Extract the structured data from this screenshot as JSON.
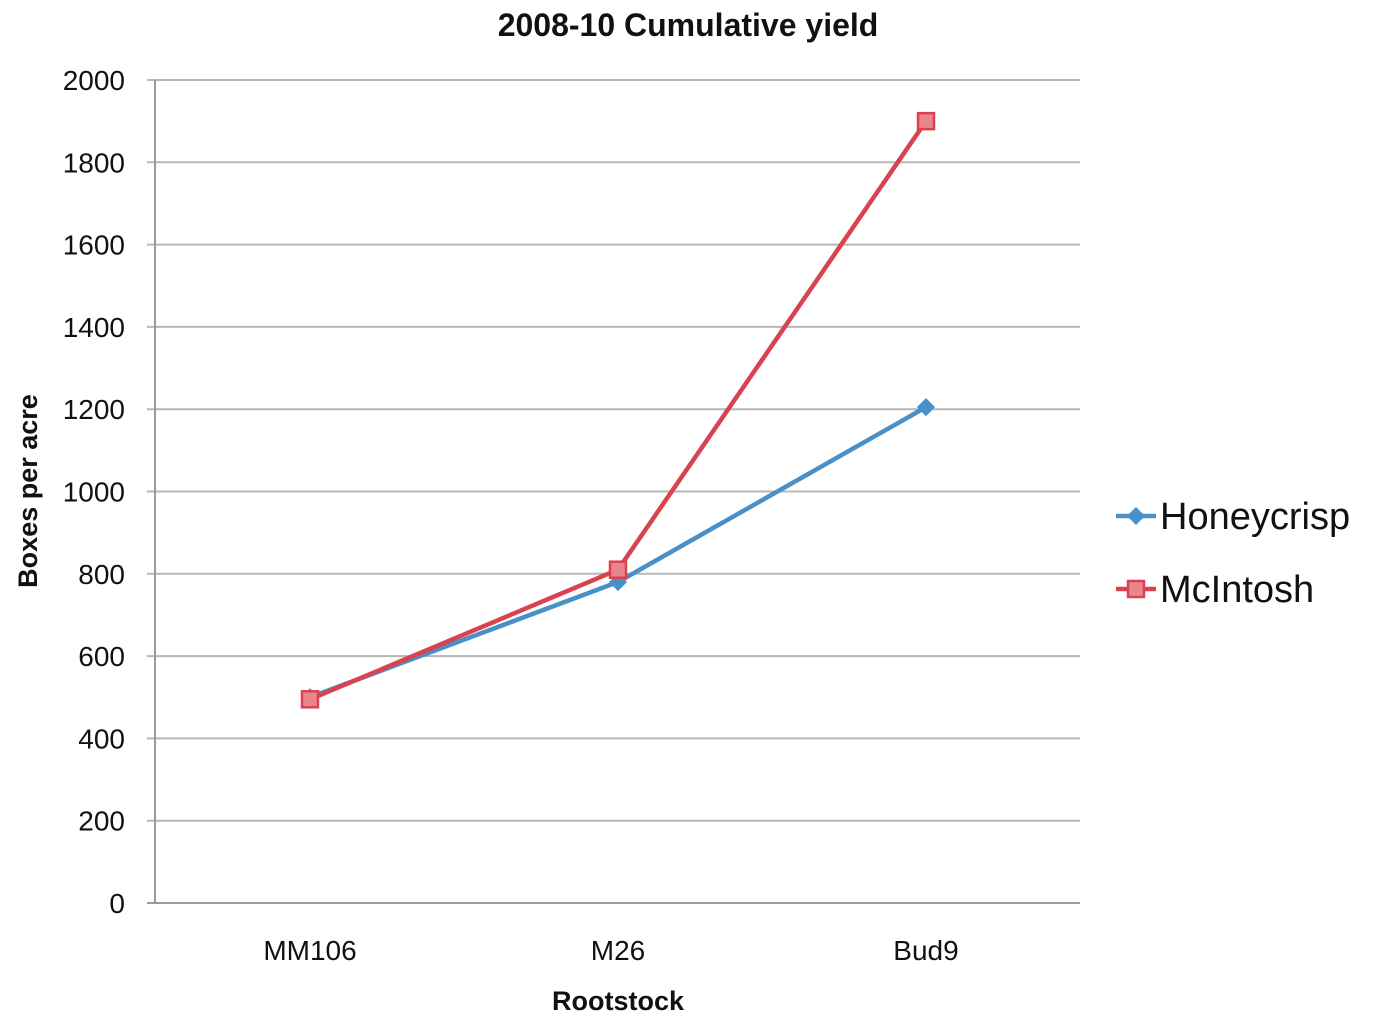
{
  "chart_data": {
    "type": "line",
    "title": "2008-10 Cumulative yield",
    "xlabel": "Rootstock",
    "ylabel": "Boxes per acre",
    "categories": [
      "MM106",
      "M26",
      "Bud9"
    ],
    "ylim": [
      0,
      2000
    ],
    "yticks": [
      0,
      200,
      400,
      600,
      800,
      1000,
      1200,
      1400,
      1600,
      1800,
      2000
    ],
    "grid": true,
    "legend_position": "right",
    "series": [
      {
        "name": "Honeycrisp",
        "values": [
          500,
          780,
          1205
        ],
        "color": "#4a90c8",
        "marker": "diamond"
      },
      {
        "name": "McIntosh",
        "values": [
          495,
          810,
          1900
        ],
        "color": "#d9434f",
        "marker": "square"
      }
    ]
  }
}
